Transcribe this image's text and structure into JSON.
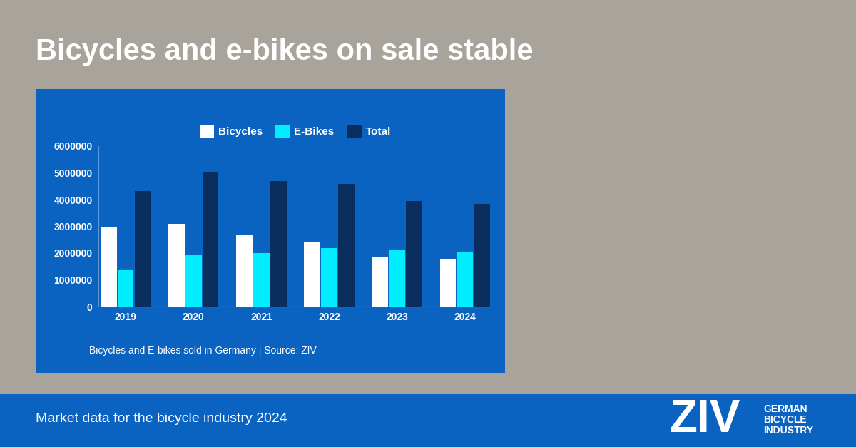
{
  "chart_data": {
    "type": "bar",
    "title": "Bicycles and e-bikes on sale stable",
    "caption": "Bicycles and E-bikes sold in Germany | Source: ZIV",
    "categories": [
      "2019",
      "2020",
      "2021",
      "2022",
      "2023",
      "2024"
    ],
    "series": [
      {
        "name": "Bicycles",
        "color": "#ffffff",
        "values": [
          2950000,
          3090000,
          2700000,
          2400000,
          1850000,
          1800000
        ]
      },
      {
        "name": "E-Bikes",
        "color": "#00eeff",
        "values": [
          1360000,
          1950000,
          2000000,
          2200000,
          2100000,
          2050000
        ]
      },
      {
        "name": "Total",
        "color": "#0a2f5e",
        "values": [
          4310000,
          5040000,
          4700000,
          4600000,
          3950000,
          3850000
        ]
      }
    ],
    "ylim": [
      0,
      6000000
    ],
    "yticks": [
      0,
      1000000,
      2000000,
      3000000,
      4000000,
      5000000,
      6000000
    ],
    "grid": false,
    "legend": "upper center"
  },
  "footer": {
    "text": "Market data for the bicycle industry 2024",
    "logo": "ZIV",
    "logo_subtitle": [
      "GERMAN",
      "BICYCLE",
      "INDUSTRY"
    ]
  }
}
